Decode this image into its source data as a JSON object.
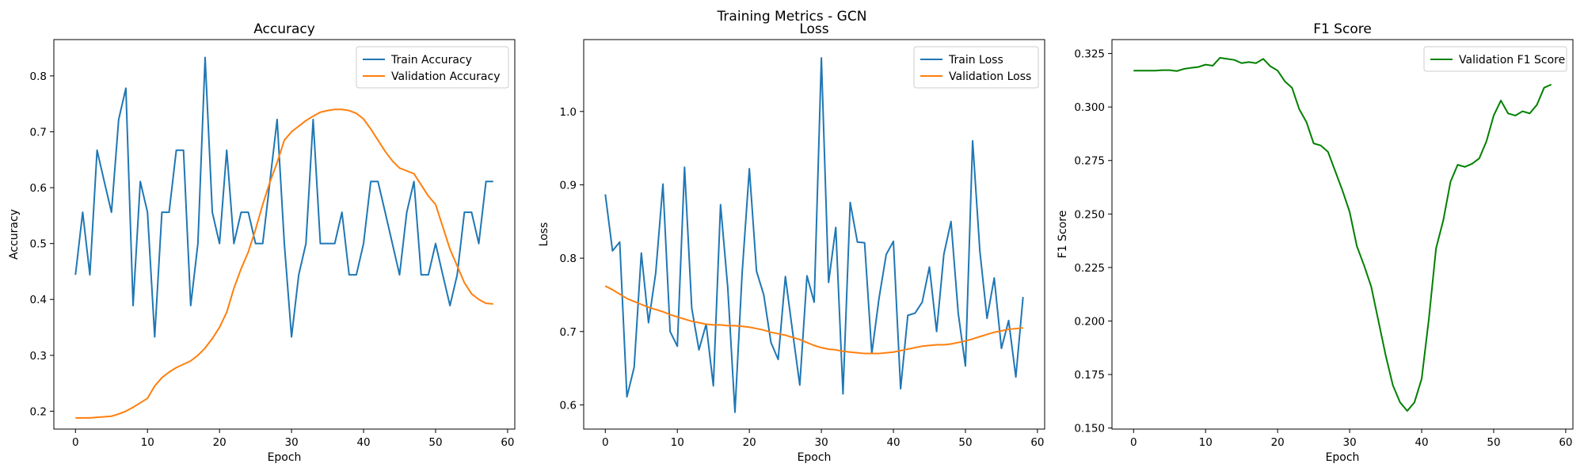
{
  "figure": {
    "title": "Training Metrics - GCN"
  },
  "chart_data": [
    {
      "type": "line",
      "title": "Accuracy",
      "xlabel": "Epoch",
      "ylabel": "Accuracy",
      "xlim": [
        -3,
        61
      ],
      "ylim": [
        0.168,
        0.865
      ],
      "xticks": [
        0,
        10,
        20,
        30,
        40,
        50,
        60
      ],
      "yticks": [
        0.2,
        0.3,
        0.4,
        0.5,
        0.6,
        0.7,
        0.8
      ],
      "ytick_decimals": 1,
      "legend": "top-right",
      "series": [
        {
          "name": "Train Accuracy",
          "color": "#1f77b4",
          "values": [
            0.444,
            0.556,
            0.444,
            0.667,
            0.611,
            0.556,
            0.722,
            0.778,
            0.389,
            0.611,
            0.556,
            0.333,
            0.556,
            0.556,
            0.667,
            0.667,
            0.389,
            0.5,
            0.833,
            0.556,
            0.5,
            0.667,
            0.5,
            0.556,
            0.556,
            0.5,
            0.5,
            0.611,
            0.722,
            0.5,
            0.333,
            0.444,
            0.5,
            0.722,
            0.5,
            0.5,
            0.5,
            0.556,
            0.444,
            0.444,
            0.5,
            0.611,
            0.611,
            0.556,
            0.5,
            0.444,
            0.556,
            0.611,
            0.444,
            0.444,
            0.5,
            0.444,
            0.389,
            0.444,
            0.556,
            0.556,
            0.5,
            0.611,
            0.611
          ]
        },
        {
          "name": "Validation Accuracy",
          "color": "#ff7f0e",
          "values": [
            0.188,
            0.188,
            0.188,
            0.189,
            0.19,
            0.191,
            0.195,
            0.2,
            0.207,
            0.215,
            0.223,
            0.245,
            0.26,
            0.27,
            0.278,
            0.284,
            0.29,
            0.3,
            0.313,
            0.33,
            0.35,
            0.377,
            0.42,
            0.455,
            0.485,
            0.525,
            0.57,
            0.61,
            0.645,
            0.685,
            0.7,
            0.71,
            0.72,
            0.728,
            0.735,
            0.738,
            0.74,
            0.74,
            0.738,
            0.733,
            0.723,
            0.705,
            0.685,
            0.665,
            0.648,
            0.635,
            0.63,
            0.625,
            0.605,
            0.585,
            0.57,
            0.53,
            0.49,
            0.46,
            0.43,
            0.41,
            0.4,
            0.393,
            0.392
          ]
        }
      ]
    },
    {
      "type": "line",
      "title": "Loss",
      "xlabel": "Epoch",
      "ylabel": "Loss",
      "xlim": [
        -3,
        61
      ],
      "ylim": [
        0.567,
        1.098
      ],
      "xticks": [
        0,
        10,
        20,
        30,
        40,
        50,
        60
      ],
      "yticks": [
        0.6,
        0.7,
        0.8,
        0.9,
        1.0
      ],
      "ytick_decimals": 1,
      "legend": "top-right",
      "series": [
        {
          "name": "Train Loss",
          "color": "#1f77b4",
          "values": [
            0.887,
            0.81,
            0.822,
            0.611,
            0.651,
            0.807,
            0.712,
            0.78,
            0.901,
            0.7,
            0.68,
            0.924,
            0.732,
            0.675,
            0.71,
            0.626,
            0.873,
            0.76,
            0.59,
            0.78,
            0.922,
            0.782,
            0.75,
            0.685,
            0.662,
            0.775,
            0.7,
            0.627,
            0.776,
            0.74,
            1.073,
            0.767,
            0.842,
            0.615,
            0.876,
            0.822,
            0.821,
            0.67,
            0.745,
            0.805,
            0.823,
            0.622,
            0.722,
            0.725,
            0.74,
            0.788,
            0.7,
            0.805,
            0.85,
            0.725,
            0.653,
            0.96,
            0.81,
            0.718,
            0.773,
            0.677,
            0.715,
            0.638,
            0.747
          ]
        },
        {
          "name": "Validation Loss",
          "color": "#ff7f0e",
          "values": [
            0.762,
            0.757,
            0.751,
            0.745,
            0.741,
            0.737,
            0.733,
            0.73,
            0.727,
            0.723,
            0.72,
            0.717,
            0.714,
            0.712,
            0.71,
            0.709,
            0.709,
            0.708,
            0.708,
            0.707,
            0.706,
            0.704,
            0.702,
            0.699,
            0.697,
            0.695,
            0.692,
            0.689,
            0.685,
            0.681,
            0.678,
            0.676,
            0.675,
            0.673,
            0.672,
            0.671,
            0.67,
            0.67,
            0.67,
            0.671,
            0.672,
            0.674,
            0.676,
            0.678,
            0.68,
            0.681,
            0.682,
            0.682,
            0.683,
            0.685,
            0.687,
            0.69,
            0.693,
            0.696,
            0.699,
            0.701,
            0.703,
            0.704,
            0.705
          ]
        }
      ]
    },
    {
      "type": "line",
      "title": "F1 Score",
      "xlabel": "Epoch",
      "ylabel": "F1 Score",
      "xlim": [
        -3,
        61
      ],
      "ylim": [
        0.1495,
        0.3315
      ],
      "xticks": [
        0,
        10,
        20,
        30,
        40,
        50,
        60
      ],
      "yticks": [
        0.15,
        0.175,
        0.2,
        0.225,
        0.25,
        0.275,
        0.3,
        0.325
      ],
      "ytick_decimals": 3,
      "legend": "top-right",
      "series": [
        {
          "name": "Validation F1 Score",
          "color": "#008000",
          "values": [
            0.317,
            0.317,
            0.317,
            0.317,
            0.3172,
            0.3172,
            0.3168,
            0.3178,
            0.3183,
            0.3187,
            0.3198,
            0.3193,
            0.323,
            0.3225,
            0.322,
            0.3205,
            0.321,
            0.3205,
            0.3225,
            0.319,
            0.317,
            0.312,
            0.309,
            0.299,
            0.293,
            0.283,
            0.282,
            0.279,
            0.27,
            0.261,
            0.251,
            0.235,
            0.226,
            0.216,
            0.2,
            0.184,
            0.17,
            0.162,
            0.158,
            0.162,
            0.173,
            0.201,
            0.234,
            0.247,
            0.265,
            0.273,
            0.272,
            0.2735,
            0.276,
            0.284,
            0.296,
            0.303,
            0.297,
            0.296,
            0.298,
            0.297,
            0.301,
            0.309,
            0.3105
          ]
        }
      ]
    }
  ]
}
